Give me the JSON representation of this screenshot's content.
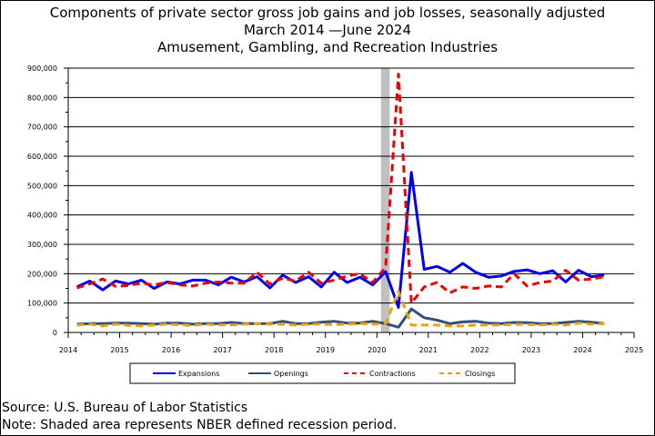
{
  "title": {
    "line1": "Components of private sector gross job gains and job losses, seasonally adjusted",
    "line2": "March 2014 —June 2024",
    "line3": "Amusement, Gambling, and Recreation Industries"
  },
  "footer": {
    "source": "Source: U.S. Bureau of Labor Statistics",
    "note": "Note: Shaded area represents NBER defined recession period."
  },
  "chart_data": {
    "type": "line",
    "xlim": [
      2014,
      2025
    ],
    "ylim": [
      0,
      900000
    ],
    "x_ticks": [
      "2014",
      "2015",
      "2016",
      "2017",
      "2018",
      "2019",
      "2020",
      "2021",
      "2022",
      "2023",
      "2024",
      "2025"
    ],
    "y_ticks": [
      "0",
      "100,000",
      "200,000",
      "300,000",
      "400,000",
      "500,000",
      "600,000",
      "700,000",
      "800,000",
      "900,000"
    ],
    "grid": true,
    "legend_position": "bottom",
    "recession": {
      "start": 2020.08,
      "end": 2020.25,
      "color": "#c0c0c0"
    },
    "x": [
      "2014-03",
      "2014-06",
      "2014-09",
      "2014-12",
      "2015-03",
      "2015-06",
      "2015-09",
      "2015-12",
      "2016-03",
      "2016-06",
      "2016-09",
      "2016-12",
      "2017-03",
      "2017-06",
      "2017-09",
      "2017-12",
      "2018-03",
      "2018-06",
      "2018-09",
      "2018-12",
      "2019-03",
      "2019-06",
      "2019-09",
      "2019-12",
      "2020-03",
      "2020-06",
      "2020-09",
      "2020-12",
      "2021-03",
      "2021-06",
      "2021-09",
      "2021-12",
      "2022-03",
      "2022-06",
      "2022-09",
      "2022-12",
      "2023-03",
      "2023-06",
      "2023-09",
      "2023-12",
      "2024-03",
      "2024-06"
    ],
    "x_numeric": [
      2014.17,
      2014.42,
      2014.67,
      2014.92,
      2015.17,
      2015.42,
      2015.67,
      2015.92,
      2016.17,
      2016.42,
      2016.67,
      2016.92,
      2017.17,
      2017.42,
      2017.67,
      2017.92,
      2018.17,
      2018.42,
      2018.67,
      2018.92,
      2019.17,
      2019.42,
      2019.67,
      2019.92,
      2020.17,
      2020.42,
      2020.67,
      2020.92,
      2021.17,
      2021.42,
      2021.67,
      2021.92,
      2022.17,
      2022.42,
      2022.67,
      2022.92,
      2023.17,
      2023.42,
      2023.67,
      2023.92,
      2024.17,
      2024.42
    ],
    "series": [
      {
        "name": "Expansions",
        "color": "#0000ee",
        "dash": "solid",
        "width": 3,
        "values": [
          155000,
          175000,
          145000,
          175000,
          165000,
          178000,
          150000,
          172000,
          165000,
          178000,
          178000,
          162000,
          188000,
          172000,
          190000,
          152000,
          195000,
          170000,
          190000,
          155000,
          205000,
          170000,
          188000,
          162000,
          207000,
          85000,
          545000,
          215000,
          225000,
          205000,
          235000,
          205000,
          188000,
          192000,
          208000,
          213000,
          200000,
          210000,
          172000,
          212000,
          190000,
          195000
        ]
      },
      {
        "name": "Openings",
        "color": "#2f4f7f",
        "dash": "solid",
        "width": 3,
        "values": [
          28000,
          30000,
          30000,
          32000,
          32000,
          30000,
          28000,
          32000,
          32000,
          28000,
          30000,
          30000,
          34000,
          30000,
          30000,
          30000,
          38000,
          30000,
          30000,
          35000,
          38000,
          32000,
          32000,
          38000,
          30000,
          18000,
          80000,
          50000,
          42000,
          30000,
          36000,
          38000,
          32000,
          30000,
          34000,
          33000,
          30000,
          30000,
          34000,
          38000,
          35000,
          30000
        ]
      },
      {
        "name": "Contractions",
        "color": "#ee0000",
        "dash": "dash",
        "width": 3,
        "values": [
          152000,
          165000,
          182000,
          157000,
          160000,
          168000,
          162000,
          170000,
          162000,
          158000,
          168000,
          172000,
          168000,
          168000,
          205000,
          165000,
          185000,
          175000,
          205000,
          168000,
          178000,
          192000,
          200000,
          170000,
          222000,
          880000,
          100000,
          155000,
          170000,
          135000,
          155000,
          150000,
          158000,
          155000,
          200000,
          158000,
          170000,
          175000,
          212000,
          178000,
          182000,
          190000
        ]
      },
      {
        "name": "Closings",
        "color": "#f0a000",
        "dash": "dash",
        "width": 3,
        "values": [
          25000,
          28000,
          22000,
          28000,
          24000,
          22000,
          25000,
          28000,
          26000,
          24000,
          28000,
          26000,
          25000,
          28000,
          30000,
          28000,
          28000,
          25000,
          28000,
          28000,
          27000,
          28000,
          30000,
          28000,
          30000,
          140000,
          25000,
          25000,
          25000,
          22000,
          22000,
          25000,
          25000,
          25000,
          28000,
          27000,
          25000,
          28000,
          25000,
          32000,
          28000,
          30000
        ]
      }
    ]
  }
}
